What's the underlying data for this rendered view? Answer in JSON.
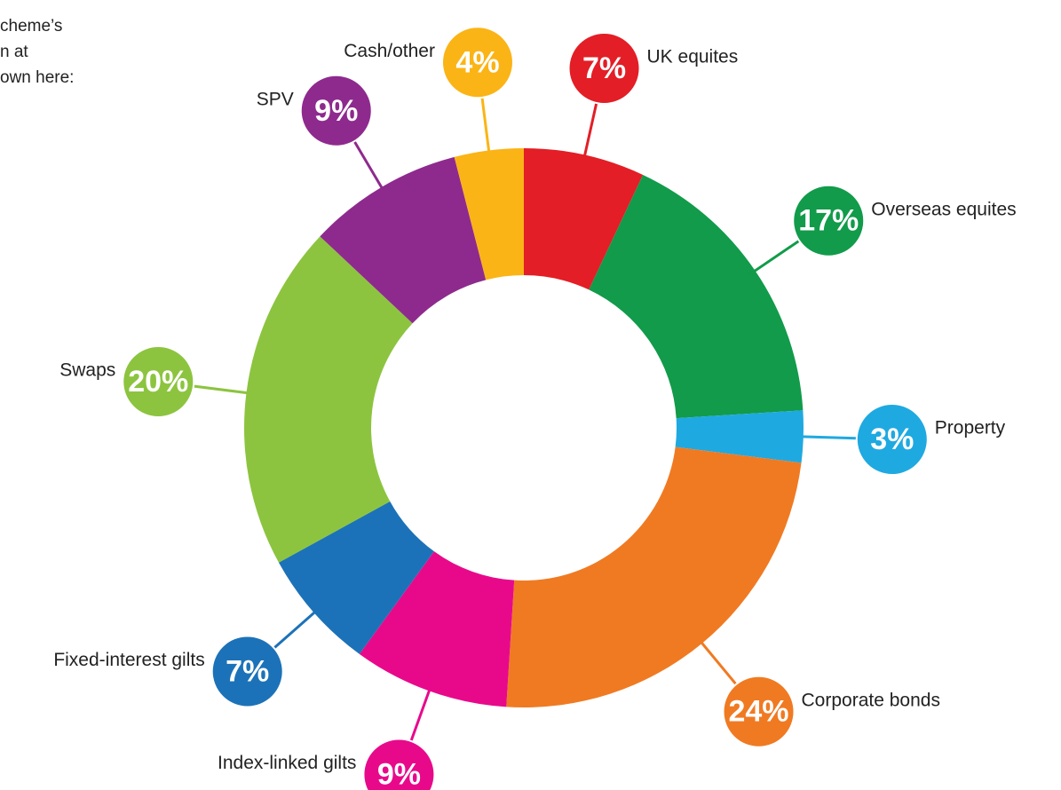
{
  "intro_lines": [
    "cheme’s",
    "n at",
    "own here:"
  ],
  "chart_data": {
    "type": "pie",
    "categories": [
      "UK equites",
      "Overseas equites",
      "Property",
      "Corporate bonds",
      "Index-linked gilts",
      "Fixed-interest gilts",
      "Swaps",
      "SPV",
      "Cash/other"
    ],
    "values": [
      7,
      17,
      3,
      24,
      9,
      7,
      20,
      9,
      4
    ],
    "value_labels": [
      "7%",
      "17%",
      "3%",
      "24%",
      "9%",
      "7%",
      "20%",
      "9%",
      "4%"
    ],
    "colors": [
      "#e31e26",
      "#119b4a",
      "#1fa9e1",
      "#f07a22",
      "#e8098b",
      "#1c72b8",
      "#8cc43f",
      "#8e2a8d",
      "#fbb416"
    ]
  }
}
